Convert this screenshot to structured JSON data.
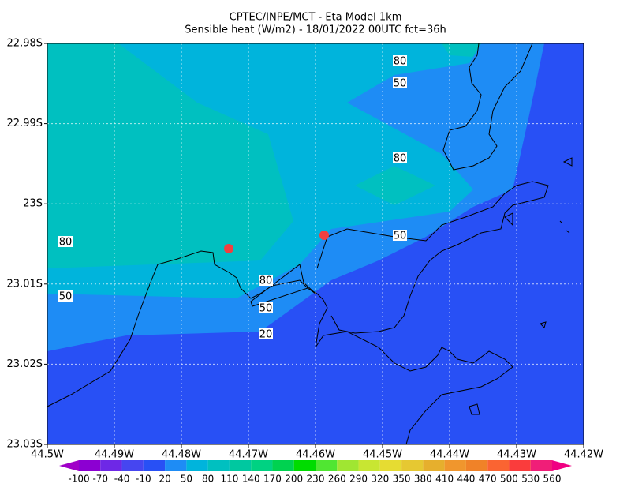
{
  "title": [
    "CPTEC/INPE/MCT -  Eta Model 1km",
    "Sensible heat (W/m2) - 18/01/2022 00UTC fct=36h"
  ],
  "lat_ticks": [
    "22.98S",
    "22.99S",
    "23S",
    "23.01S",
    "23.02S",
    "23.03S"
  ],
  "lon_ticks": [
    "44.5W",
    "44.49W",
    "44.48W",
    "44.47W",
    "44.46W",
    "44.45W",
    "44.44W",
    "44.43W",
    "44.42W"
  ],
  "contour_labels": [
    "80",
    "50",
    "80",
    "50",
    "80",
    "50",
    "80",
    "50",
    "20"
  ],
  "colorbar": {
    "labels": [
      "-100",
      "-70",
      "-40",
      "-10",
      "20",
      "50",
      "80",
      "110",
      "140",
      "170",
      "200",
      "230",
      "260",
      "290",
      "320",
      "350",
      "380",
      "410",
      "440",
      "470",
      "500",
      "530",
      "560"
    ],
    "colors": [
      "#a000c8",
      "#8c00d2",
      "#6e28e6",
      "#4646f0",
      "#2850f5",
      "#1e8cf5",
      "#00b4dc",
      "#00c0c0",
      "#00c8a0",
      "#00d282",
      "#00d250",
      "#00dc00",
      "#50e632",
      "#a0e632",
      "#c8e632",
      "#e6dc32",
      "#e6c832",
      "#e6af2d",
      "#f0962d",
      "#f08228",
      "#fa6432",
      "#fa3c3c",
      "#f01e78",
      "#f00082"
    ]
  }
}
